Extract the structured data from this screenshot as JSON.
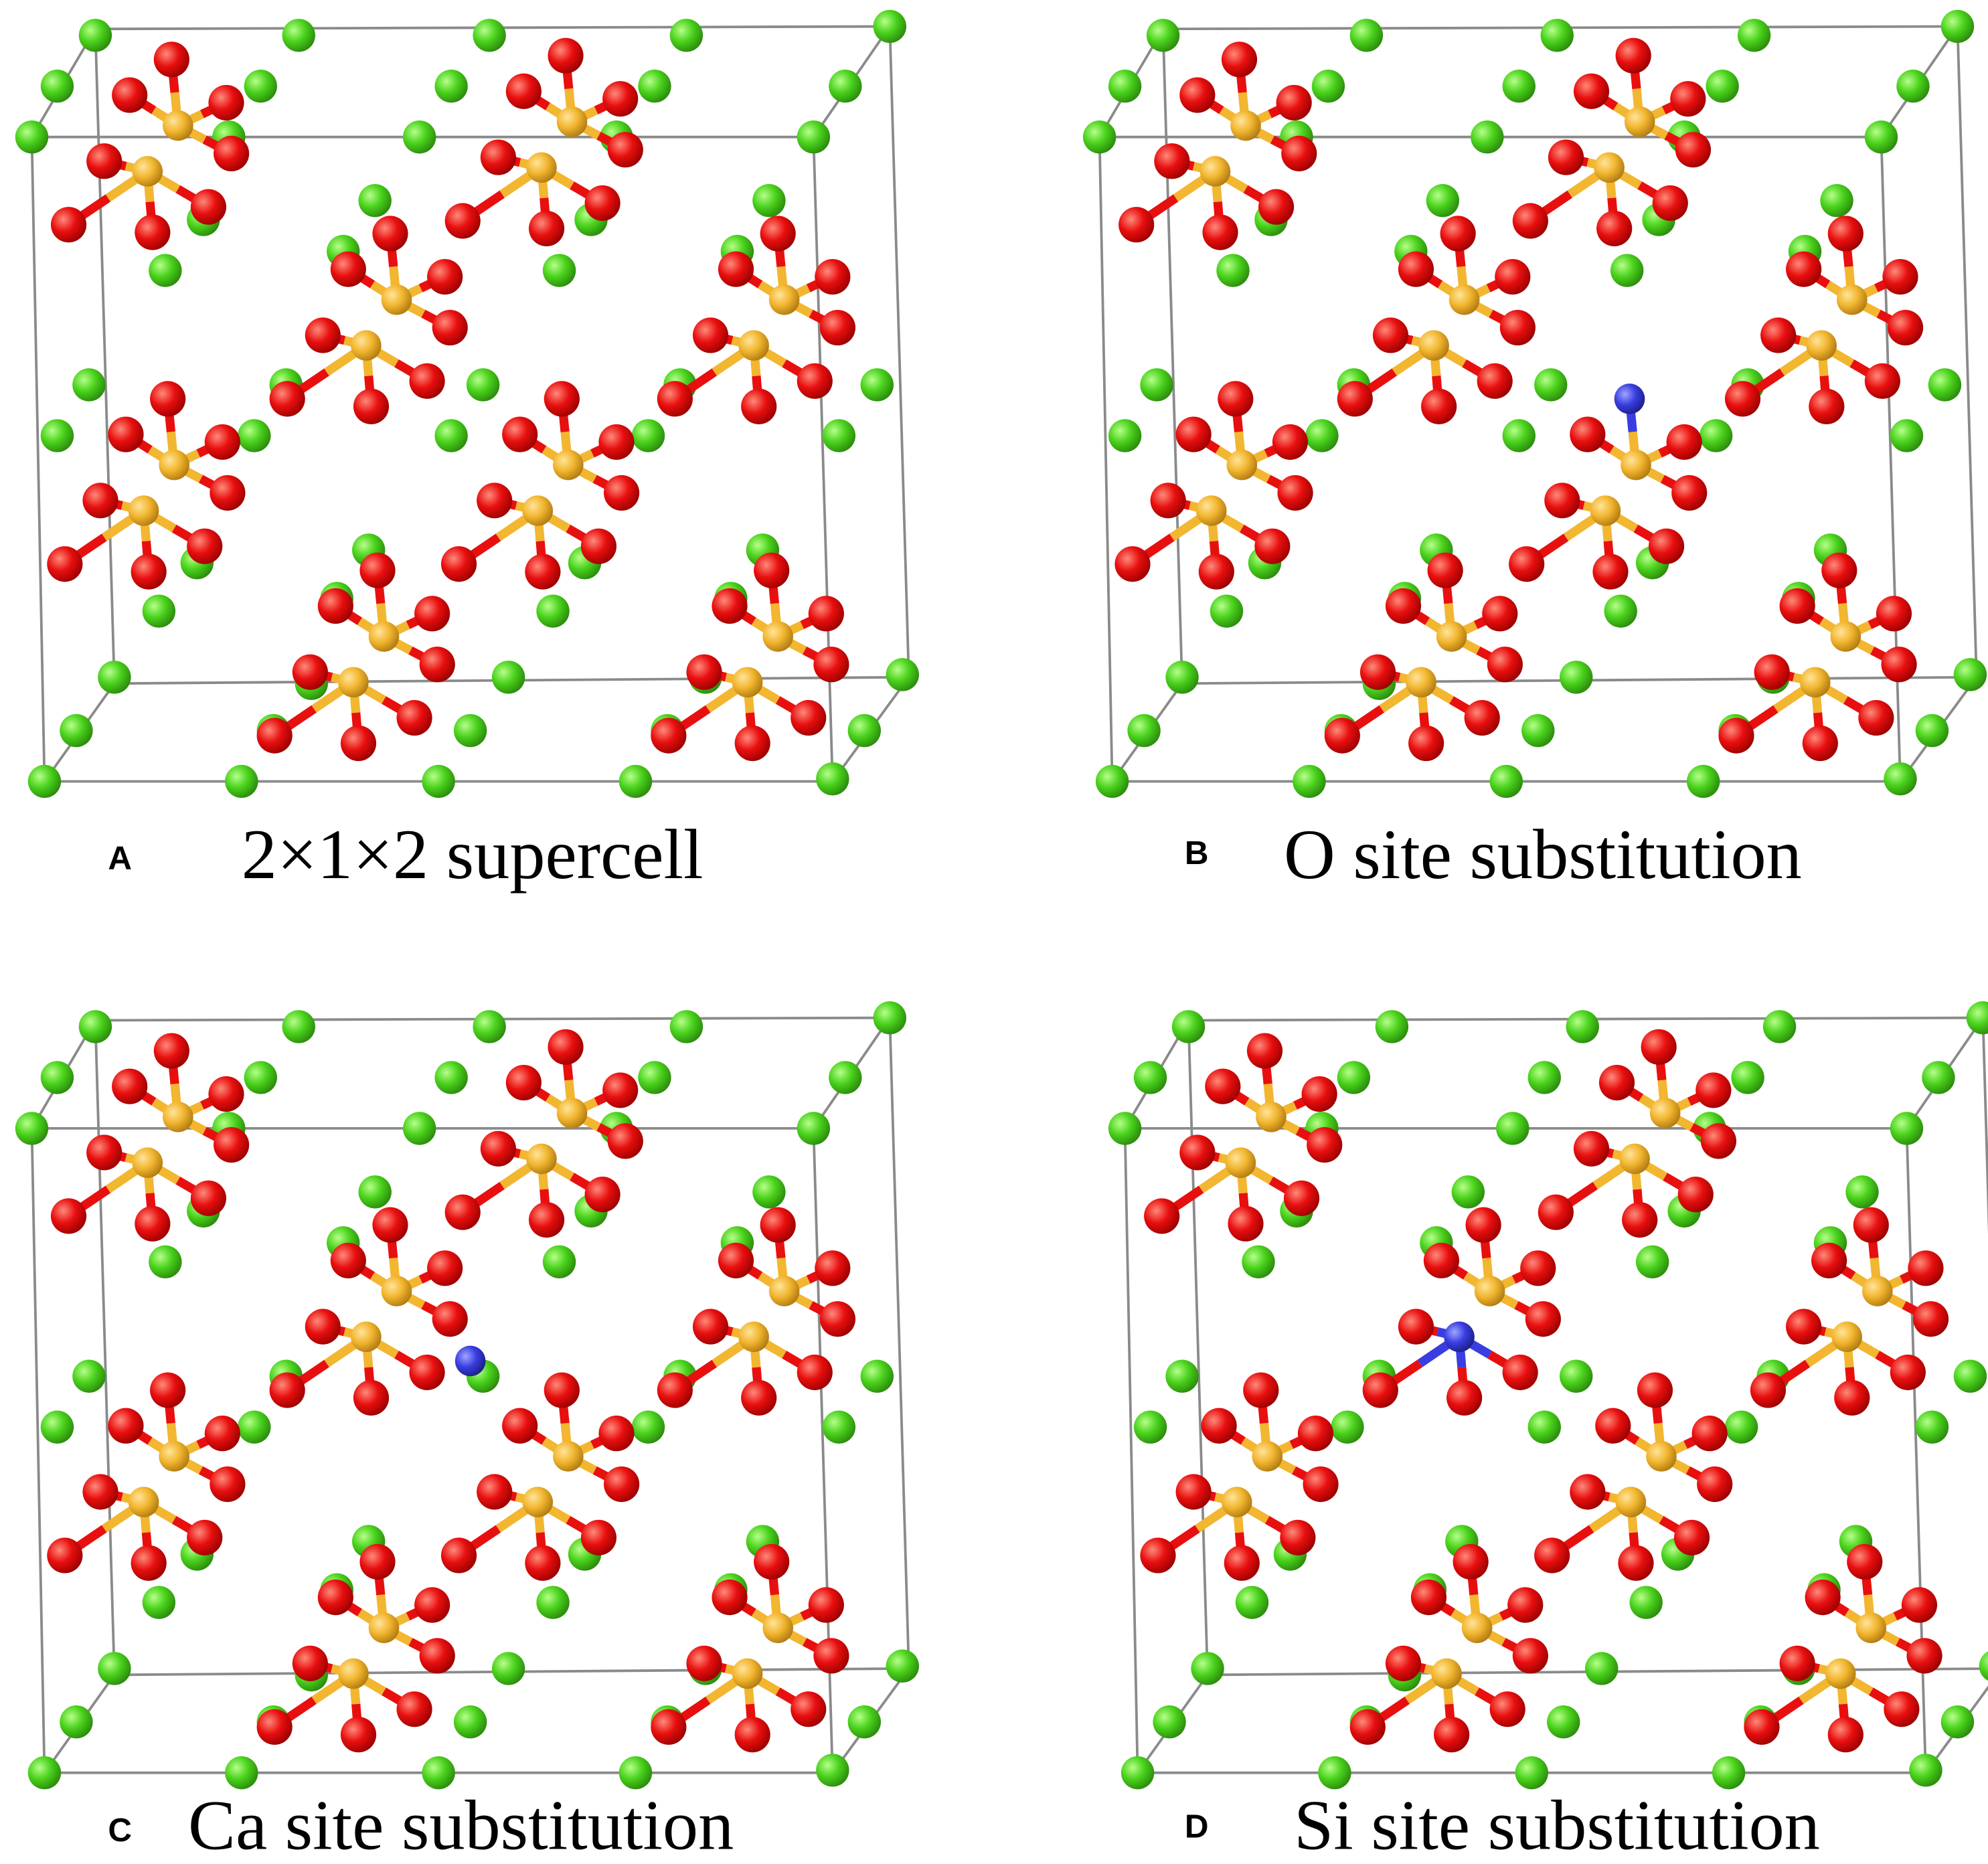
{
  "panels": [
    {
      "letter": "A",
      "caption": "2×1×2 supercell"
    },
    {
      "letter": "B",
      "caption": "O site substitution"
    },
    {
      "letter": "C",
      "caption": "Ca site substitution"
    },
    {
      "letter": "D",
      "caption": "Si site substitution"
    }
  ]
}
